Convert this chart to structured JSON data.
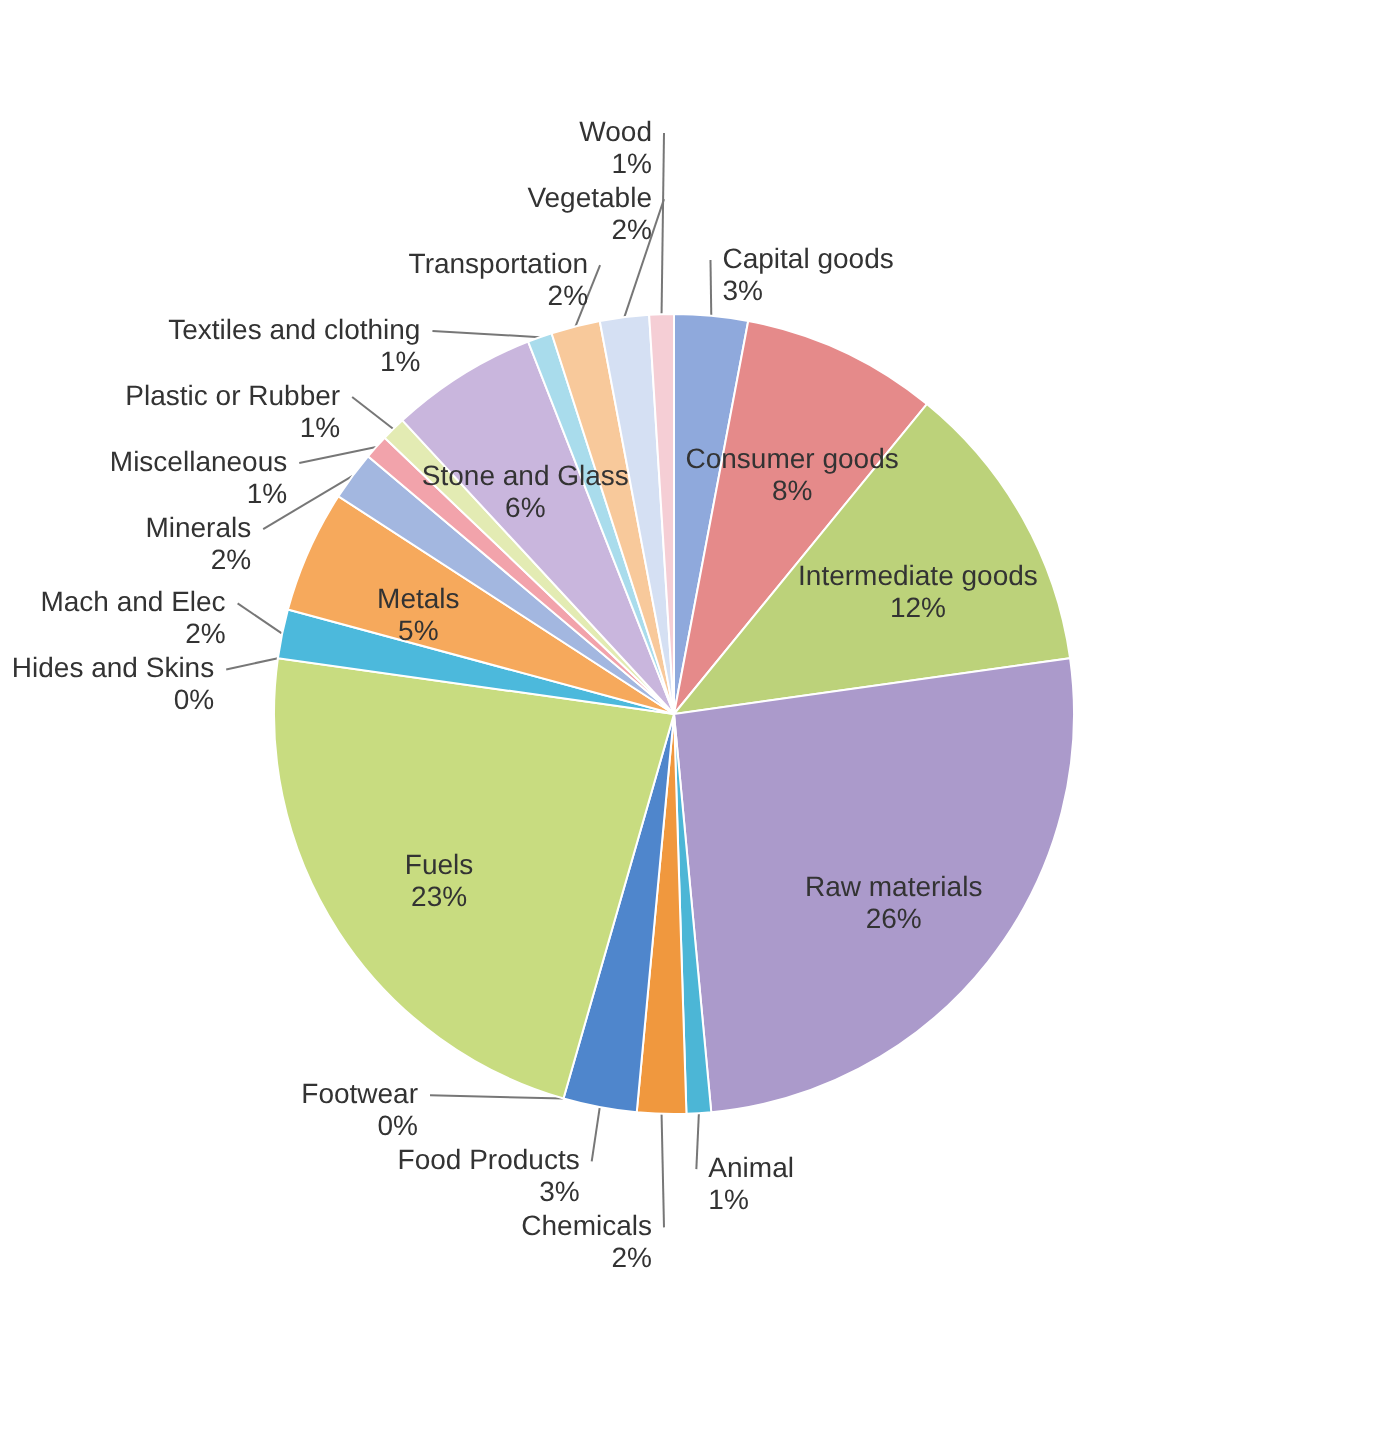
{
  "chart_data": {
    "type": "pie",
    "categories": [
      "Capital goods",
      "Consumer goods",
      "Intermediate goods",
      "Raw materials",
      "Animal",
      "Chemicals",
      "Food Products",
      "Footwear",
      "Fuels",
      "Hides and Skins",
      "Mach and Elec",
      "Metals",
      "Minerals",
      "Miscellaneous",
      "Plastic or Rubber",
      "Stone and Glass",
      "Textiles and clothing",
      "Transportation",
      "Vegetable",
      "Wood"
    ],
    "values": [
      3,
      8,
      12,
      26,
      1,
      2,
      3,
      0,
      23,
      0,
      2,
      5,
      2,
      1,
      1,
      6,
      1,
      2,
      2,
      1
    ],
    "value_labels": [
      "3%",
      "8%",
      "12%",
      "26%",
      "1%",
      "2%",
      "3%",
      "0%",
      "23%",
      "0%",
      "2%",
      "5%",
      "2%",
      "1%",
      "1%",
      "6%",
      "1%",
      "2%",
      "2%",
      "1%"
    ],
    "colors": [
      "#8fa9dc",
      "#e58a8a",
      "#bcd27a",
      "#ab9acb",
      "#4cb6d6",
      "#f0983e",
      "#4f86cc",
      "#8fb0d8",
      "#c8dc80",
      "#b49bd0",
      "#4cb9dc",
      "#f6a95c",
      "#a3b7e0",
      "#f2a3ab",
      "#e3ebb3",
      "#c9b6dd",
      "#a9dcec",
      "#f8c99b",
      "#d5e0f3",
      "#f5ced5"
    ]
  }
}
